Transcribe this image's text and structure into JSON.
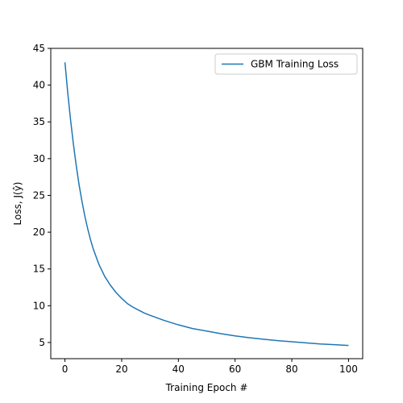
{
  "chart_data": {
    "type": "line",
    "title": "",
    "xlabel": "Training Epoch #",
    "ylabel": "Loss, J(ŷ)",
    "xlim": [
      -5,
      105
    ],
    "ylim": [
      2.8,
      45
    ],
    "xticks": [
      0,
      20,
      40,
      60,
      80,
      100
    ],
    "yticks": [
      5,
      10,
      15,
      20,
      25,
      30,
      35,
      40,
      45
    ],
    "grid": false,
    "legend_position": "top-right",
    "series": [
      {
        "name": "GBM Training Loss",
        "color": "#1f77b4",
        "x": [
          0,
          1,
          2,
          3,
          4,
          5,
          6,
          7,
          8,
          9,
          10,
          12,
          14,
          16,
          18,
          20,
          22,
          24,
          26,
          28,
          30,
          35,
          40,
          45,
          50,
          55,
          60,
          65,
          70,
          75,
          80,
          85,
          90,
          95,
          100
        ],
        "y": [
          43.1,
          38.9,
          35.2,
          31.9,
          29.0,
          26.4,
          24.2,
          22.2,
          20.5,
          19.0,
          17.7,
          15.6,
          14.0,
          12.8,
          11.8,
          11.0,
          10.3,
          9.8,
          9.4,
          9.0,
          8.7,
          8.0,
          7.4,
          6.9,
          6.55,
          6.2,
          5.9,
          5.65,
          5.45,
          5.25,
          5.1,
          4.95,
          4.8,
          4.7,
          4.6
        ]
      }
    ]
  }
}
